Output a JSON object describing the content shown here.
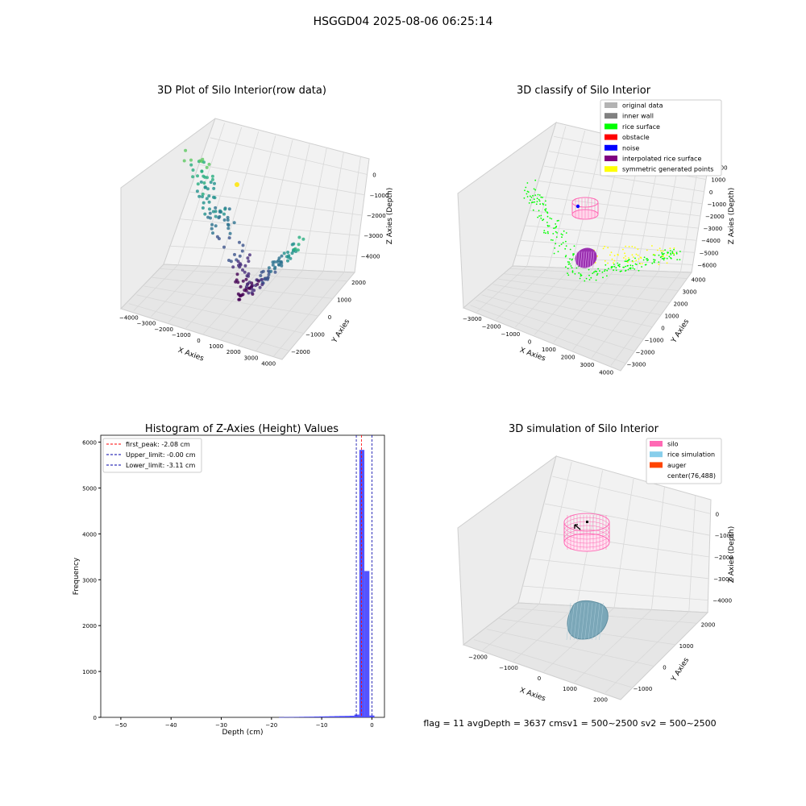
{
  "figure": {
    "suptitle": "HSGGD04 2025-08-06 06:25:14",
    "status_line": "flag = 11   avgDepth = 3637 cmsv1 = 500~2500  sv2 = 500~2500"
  },
  "chart_data": [
    {
      "id": "raw",
      "type": "scatter",
      "title": "3D Plot of Silo Interior(row data)",
      "xlabel": "X Axies",
      "ylabel": "Y Axies",
      "zlabel": "Z Axies (Depth)",
      "xticks": [
        "−4000",
        "−3000",
        "−2000",
        "−1000",
        "0",
        "1000",
        "2000",
        "3000",
        "4000"
      ],
      "yticks": [
        "−2000",
        "−1000",
        "0",
        "1000",
        "2000"
      ],
      "zticks": [
        "0",
        "−1000",
        "−2000",
        "−3000",
        "−4000"
      ],
      "xlim": [
        -4000,
        4500
      ],
      "ylim": [
        -2000,
        2500
      ],
      "zlim": [
        -4500,
        0
      ]
    },
    {
      "id": "classify",
      "type": "scatter",
      "title": "3D classify of Silo Interior",
      "xlabel": "X Axies",
      "ylabel": "Y Axies",
      "zlabel": "Z Axies (Depth)",
      "xticks": [
        "−3000",
        "−2000",
        "−1000",
        "0",
        "1000",
        "2000",
        "3000",
        "4000"
      ],
      "yticks": [
        "−3000",
        "−2000",
        "−1000",
        "0",
        "1000",
        "2000",
        "3000",
        "4000"
      ],
      "zticks": [
        "2000",
        "1000",
        "0",
        "−1000",
        "−2000",
        "−3000",
        "−4000",
        "−5000",
        "−6000"
      ],
      "legend": [
        {
          "label": "original data",
          "color": "#b3b3b3"
        },
        {
          "label": "inner wall",
          "color": "#808080"
        },
        {
          "label": "rice surface",
          "color": "#00ff00"
        },
        {
          "label": "obstacle",
          "color": "#ff0000"
        },
        {
          "label": "noise",
          "color": "#0000ff"
        },
        {
          "label": "interpolated rice surface",
          "color": "#800080"
        },
        {
          "label": "symmetric generated points",
          "color": "#ffff00"
        }
      ],
      "legend_position": "top-right"
    },
    {
      "id": "histogram",
      "type": "bar",
      "title": "Histogram of Z-Axies (Height) Values",
      "xlabel": "Depth (cm)",
      "ylabel": "Frequency",
      "xlim": [
        -54,
        2.5
      ],
      "ylim": [
        0,
        6150
      ],
      "xticks": [
        -50,
        -40,
        -30,
        -20,
        -10,
        0
      ],
      "xtick_labels": [
        "−50",
        "−40",
        "−30",
        "−20",
        "−10",
        "0"
      ],
      "yticks": [
        0,
        1000,
        2000,
        3000,
        4000,
        5000,
        6000
      ],
      "bin_edges": [
        -18.5,
        -17.5,
        -16.5,
        -15.5,
        -14.5,
        -13.5,
        -12.5,
        -11.5,
        -10.5,
        -9.5,
        -8.5,
        -7.5,
        -6.5,
        -5.5,
        -4.5,
        -3.5,
        -2.5,
        -1.5,
        -0.5,
        0.5
      ],
      "counts": [
        3,
        8,
        6,
        10,
        12,
        14,
        15,
        18,
        20,
        22,
        25,
        28,
        30,
        32,
        35,
        60,
        5830,
        3190,
        40
      ],
      "bar_color": "#4040ff",
      "lines": [
        {
          "label": "first_peak: -2.08 cm",
          "value": -2.08,
          "color": "#ff0000"
        },
        {
          "label": "Upper_limit: -0.00 cm",
          "value": 0.0,
          "color": "#0000aa"
        },
        {
          "label": "Lower_limit: -3.11 cm",
          "value": -3.11,
          "color": "#0000aa"
        }
      ],
      "legend_position": "top-left"
    },
    {
      "id": "simulation",
      "type": "scatter",
      "title": "3D simulation of Silo Interior",
      "xlabel": "X Axies",
      "ylabel": "Y Axies",
      "zlabel": "Z Axies (Depth)",
      "xticks": [
        "−2000",
        "−1000",
        "0",
        "1000",
        "2000"
      ],
      "yticks": [
        "−1000",
        "0",
        "1000",
        "2000"
      ],
      "zticks": [
        "0",
        "−1000",
        "−2000",
        "−3000",
        "−4000"
      ],
      "legend": [
        {
          "label": "silo",
          "color": "#ff69b4"
        },
        {
          "label": "rice simulation",
          "color": "#87ceeb"
        },
        {
          "label": "auger",
          "color": "#ff4500"
        },
        {
          "label": "center(76,488)",
          "color": "#ffffff"
        }
      ],
      "legend_position": "top-right"
    }
  ]
}
